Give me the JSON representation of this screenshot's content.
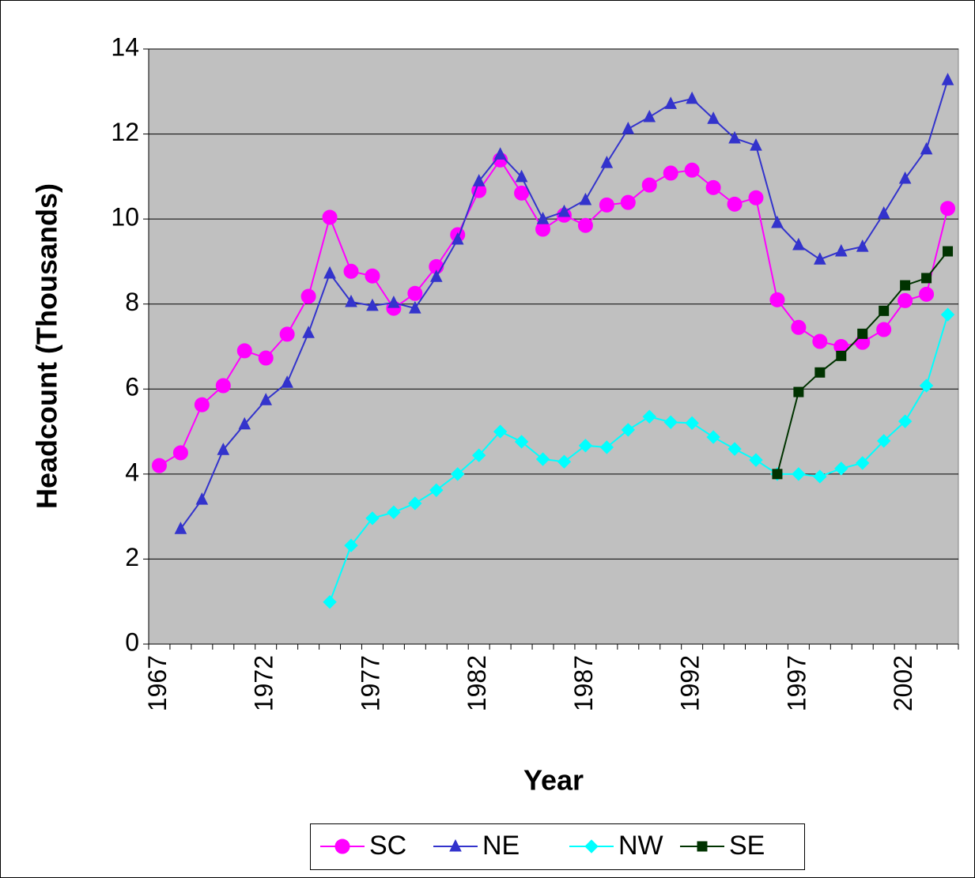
{
  "chart_data": {
    "type": "line",
    "x_label": "Year",
    "y_label": "Headcount (Thousands)",
    "categories": [
      "1967",
      null,
      null,
      null,
      null,
      "1972",
      null,
      null,
      null,
      null,
      "1977",
      null,
      null,
      null,
      null,
      "1982",
      null,
      null,
      null,
      null,
      "1987",
      null,
      null,
      null,
      null,
      "1992",
      null,
      null,
      null,
      null,
      "1997",
      null,
      null,
      null,
      null,
      "2002",
      null,
      null
    ],
    "ylim": [
      0,
      14
    ],
    "yticks": [
      0,
      2,
      4,
      6,
      8,
      10,
      12,
      14
    ],
    "grid": true,
    "legend": "bottom",
    "series": [
      {
        "name": "SC",
        "color": "#ff00ff",
        "marker": "circle",
        "values": [
          4.2,
          4.5,
          5.63,
          6.08,
          6.9,
          6.73,
          7.29,
          8.18,
          10.04,
          8.77,
          8.66,
          7.9,
          8.25,
          8.88,
          9.63,
          10.67,
          11.39,
          10.61,
          9.76,
          10.09,
          9.85,
          10.33,
          10.39,
          10.8,
          11.08,
          11.15,
          10.74,
          10.35,
          10.5,
          8.1,
          7.45,
          7.12,
          7.0,
          7.1,
          7.4,
          8.08,
          8.23,
          10.25
        ]
      },
      {
        "name": "NE",
        "color": "#3333cc",
        "marker": "triangle",
        "values": [
          null,
          2.71,
          3.4,
          4.57,
          5.17,
          5.74,
          6.15,
          7.32,
          8.72,
          8.05,
          7.96,
          8.03,
          7.9,
          8.64,
          9.52,
          10.89,
          11.52,
          10.99,
          10.0,
          10.17,
          10.45,
          11.32,
          12.12,
          12.4,
          12.71,
          12.83,
          12.36,
          11.9,
          11.73,
          9.91,
          9.39,
          9.05,
          9.24,
          9.35,
          10.13,
          10.95,
          11.64,
          13.27
        ]
      },
      {
        "name": "NW",
        "color": "#00ffff",
        "marker": "diamond",
        "values": [
          null,
          null,
          null,
          null,
          null,
          null,
          null,
          null,
          0.99,
          2.32,
          2.96,
          3.1,
          3.31,
          3.62,
          4.0,
          4.44,
          5.0,
          4.76,
          4.35,
          4.29,
          4.67,
          4.63,
          5.04,
          5.35,
          5.22,
          5.2,
          4.87,
          4.59,
          4.33,
          4.0,
          4.0,
          3.94,
          4.13,
          4.26,
          4.78,
          5.24,
          6.08,
          7.75
        ]
      },
      {
        "name": "SE",
        "color": "#003300",
        "marker": "square",
        "values": [
          null,
          null,
          null,
          null,
          null,
          null,
          null,
          null,
          null,
          null,
          null,
          null,
          null,
          null,
          null,
          null,
          null,
          null,
          null,
          null,
          null,
          null,
          null,
          null,
          null,
          null,
          null,
          null,
          null,
          4.0,
          5.93,
          6.39,
          6.78,
          7.3,
          7.84,
          8.44,
          8.61,
          9.24
        ]
      }
    ]
  }
}
